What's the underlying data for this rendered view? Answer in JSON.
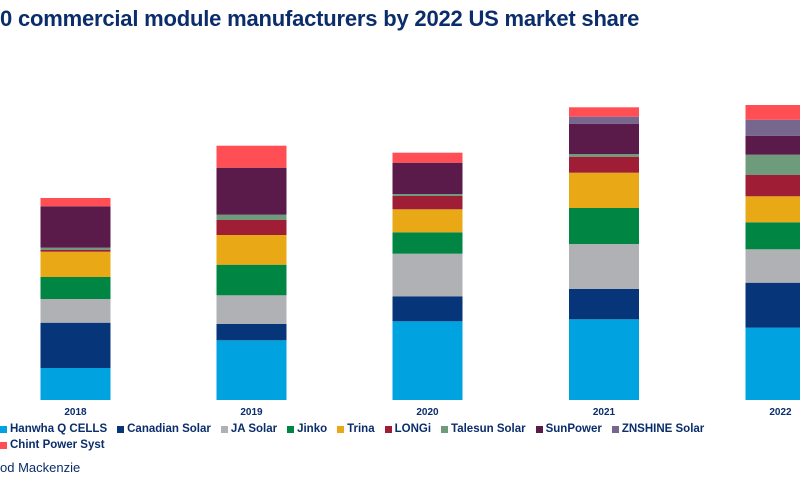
{
  "title": "0 commercial module manufacturers by 2022 US market share",
  "source": "od Mackenzie",
  "chart_data": {
    "type": "bar",
    "stacked": true,
    "title": "0 commercial module manufacturers by 2022 US market share",
    "xlabel": "",
    "ylabel": "",
    "y_axis_shown": false,
    "grid": false,
    "legend_position": "bottom",
    "categories": [
      "2018",
      "2019",
      "2020",
      "2021",
      "2022"
    ],
    "series": [
      {
        "name": "Hanwha Q CELLS",
        "legend_label": "Hanwha Q CELLS",
        "color": "#00a3e0",
        "values": [
          32,
          59.7,
          78.7,
          80.7,
          72.3
        ]
      },
      {
        "name": "Canadian Solar",
        "legend_label": "Canadian Solar",
        "color": "#06357a",
        "values": [
          45.3,
          16.3,
          25,
          30.3,
          45
        ]
      },
      {
        "name": "JA Solar",
        "legend_label": "JA Solar",
        "color": "#b0b1b4",
        "values": [
          23.7,
          28.7,
          42.6,
          45,
          33.4
        ]
      },
      {
        "name": "Jinko",
        "legend_label": "Jinko",
        "color": "#008543",
        "values": [
          22,
          30.6,
          21.4,
          36,
          27
        ]
      },
      {
        "name": "Trina",
        "legend_label": "Trina",
        "color": "#e9a816",
        "values": [
          25.3,
          29.7,
          23,
          35.3,
          26
        ]
      },
      {
        "name": "LONGi",
        "legend_label": "LONGi",
        "color": "#a01d36",
        "values": [
          1.7,
          15,
          13.3,
          16,
          21.3
        ]
      },
      {
        "name": "Talesun Solar",
        "legend_label": "Talesun Solar",
        "color": "#6f9b7d",
        "values": [
          2.3,
          5.3,
          2,
          2.7,
          20.3
        ]
      },
      {
        "name": "SunPower",
        "legend_label": "SunPower",
        "color": "#5a1a4a",
        "values": [
          41.4,
          47,
          31.3,
          30.3,
          19
        ]
      },
      {
        "name": "ZNSHINE Solar",
        "legend_label": "ZNSHINE Solar",
        "color": "#77678f",
        "values": [
          0,
          0,
          0,
          7,
          16
        ]
      },
      {
        "name": "Chint Power Systems",
        "legend_label": "Chint Power Syst",
        "color": "#ff4f55",
        "values": [
          8.3,
          22,
          10,
          9.4,
          14.7
        ]
      }
    ],
    "ylim": [
      0,
      300
    ]
  }
}
